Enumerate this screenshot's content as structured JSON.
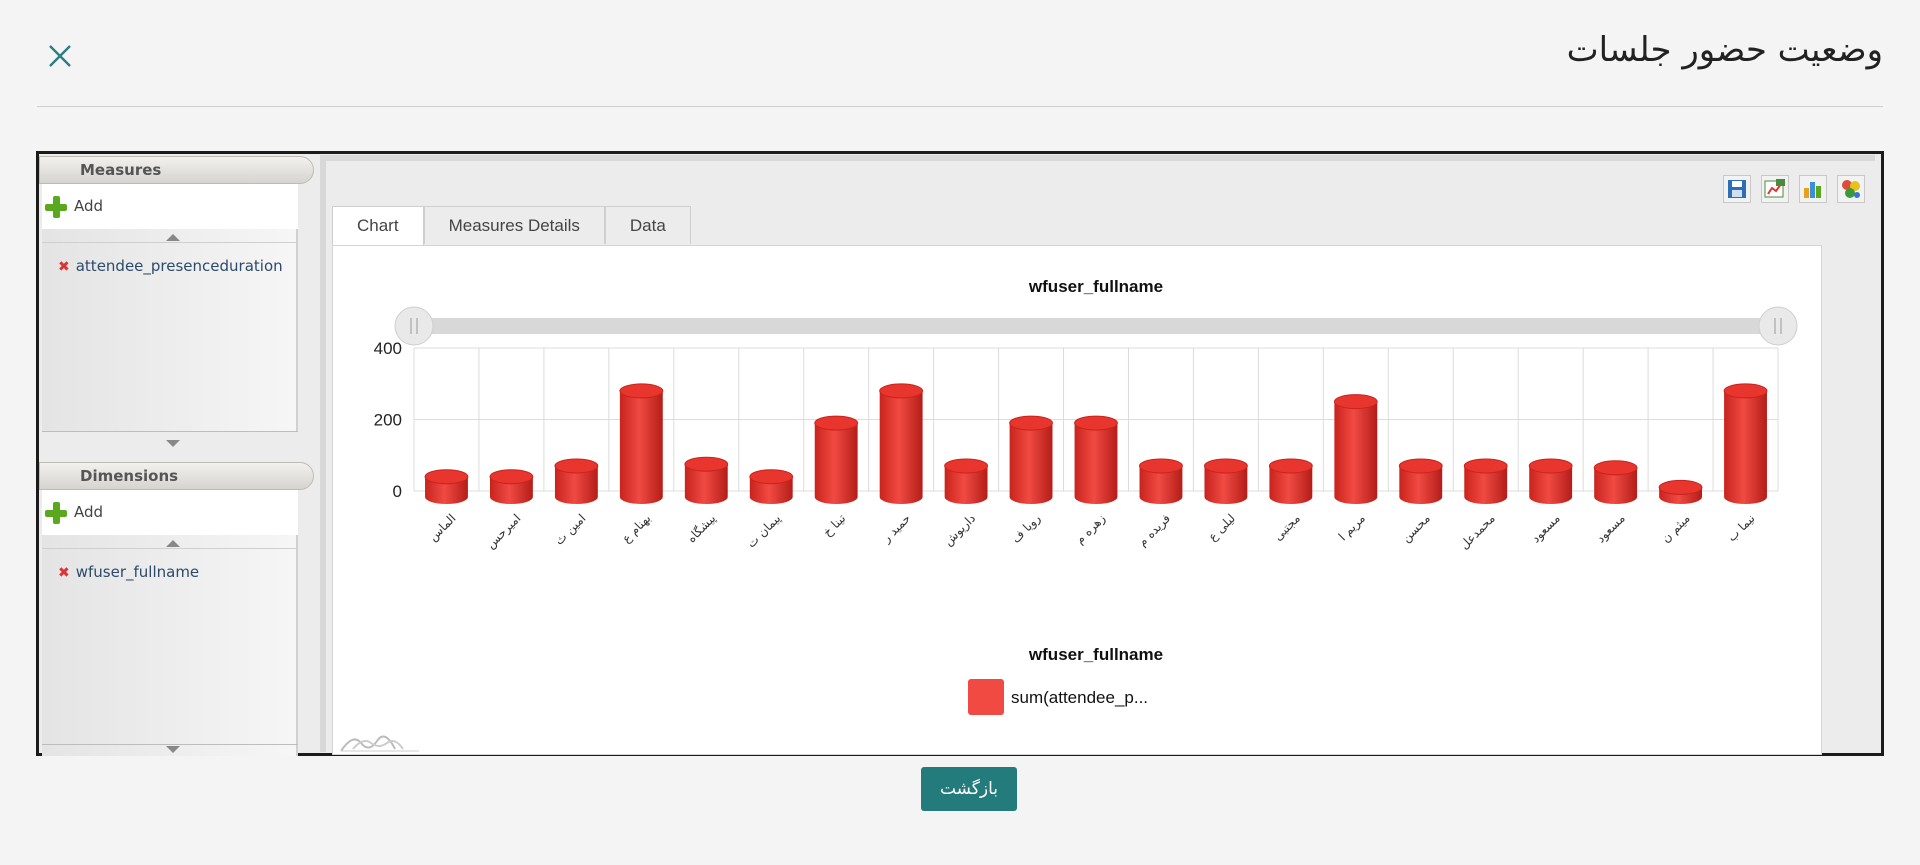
{
  "dialog": {
    "title": "وضعیت حضور جلسات",
    "back_label": "بازگشت"
  },
  "measures_panel": {
    "header": "Measures",
    "add_label": "Add",
    "items": [
      "attendee_presenceduration"
    ]
  },
  "dimensions_panel": {
    "header": "Dimensions",
    "add_label": "Add",
    "items": [
      "wfuser_fullname"
    ]
  },
  "tabs": [
    {
      "label": "Chart",
      "active": true
    },
    {
      "label": "Measures Details",
      "active": false
    },
    {
      "label": "Data",
      "active": false
    }
  ],
  "toolbar_icons": [
    "save-icon",
    "export-icon",
    "chart-type-icon",
    "palette-icon"
  ],
  "colors": {
    "bar": "#e8352e",
    "legend_swatch": "#f04a43",
    "back_button": "#247b7b"
  },
  "chart_data": {
    "type": "bar",
    "title": "wfuser_fullname",
    "legend_title": "wfuser_fullname",
    "legend_position": "bottom-center",
    "series": [
      {
        "name": "sum(attendee_p...",
        "values": [
          40,
          40,
          70,
          280,
          75,
          40,
          190,
          280,
          70,
          190,
          190,
          70,
          70,
          70,
          250,
          70,
          70,
          70,
          65,
          10,
          280
        ]
      }
    ],
    "categories": [
      "الماس",
      "امیرحس",
      "امین ث",
      "بهنام ع",
      "پیشگاه",
      "پیمان ت",
      "تینا خ",
      "حمید ر",
      "داریوش",
      "رویا ف",
      "زهره م",
      "فریده م",
      "لیلی ع",
      "مجتبی",
      "مریم ا",
      "محسن",
      "محمدعل",
      "مسعود",
      "مسعود",
      "میثم ن",
      "نیما ب"
    ],
    "y_ticks": [
      0,
      200,
      400
    ],
    "ylim": [
      0,
      400
    ],
    "grid": true
  }
}
